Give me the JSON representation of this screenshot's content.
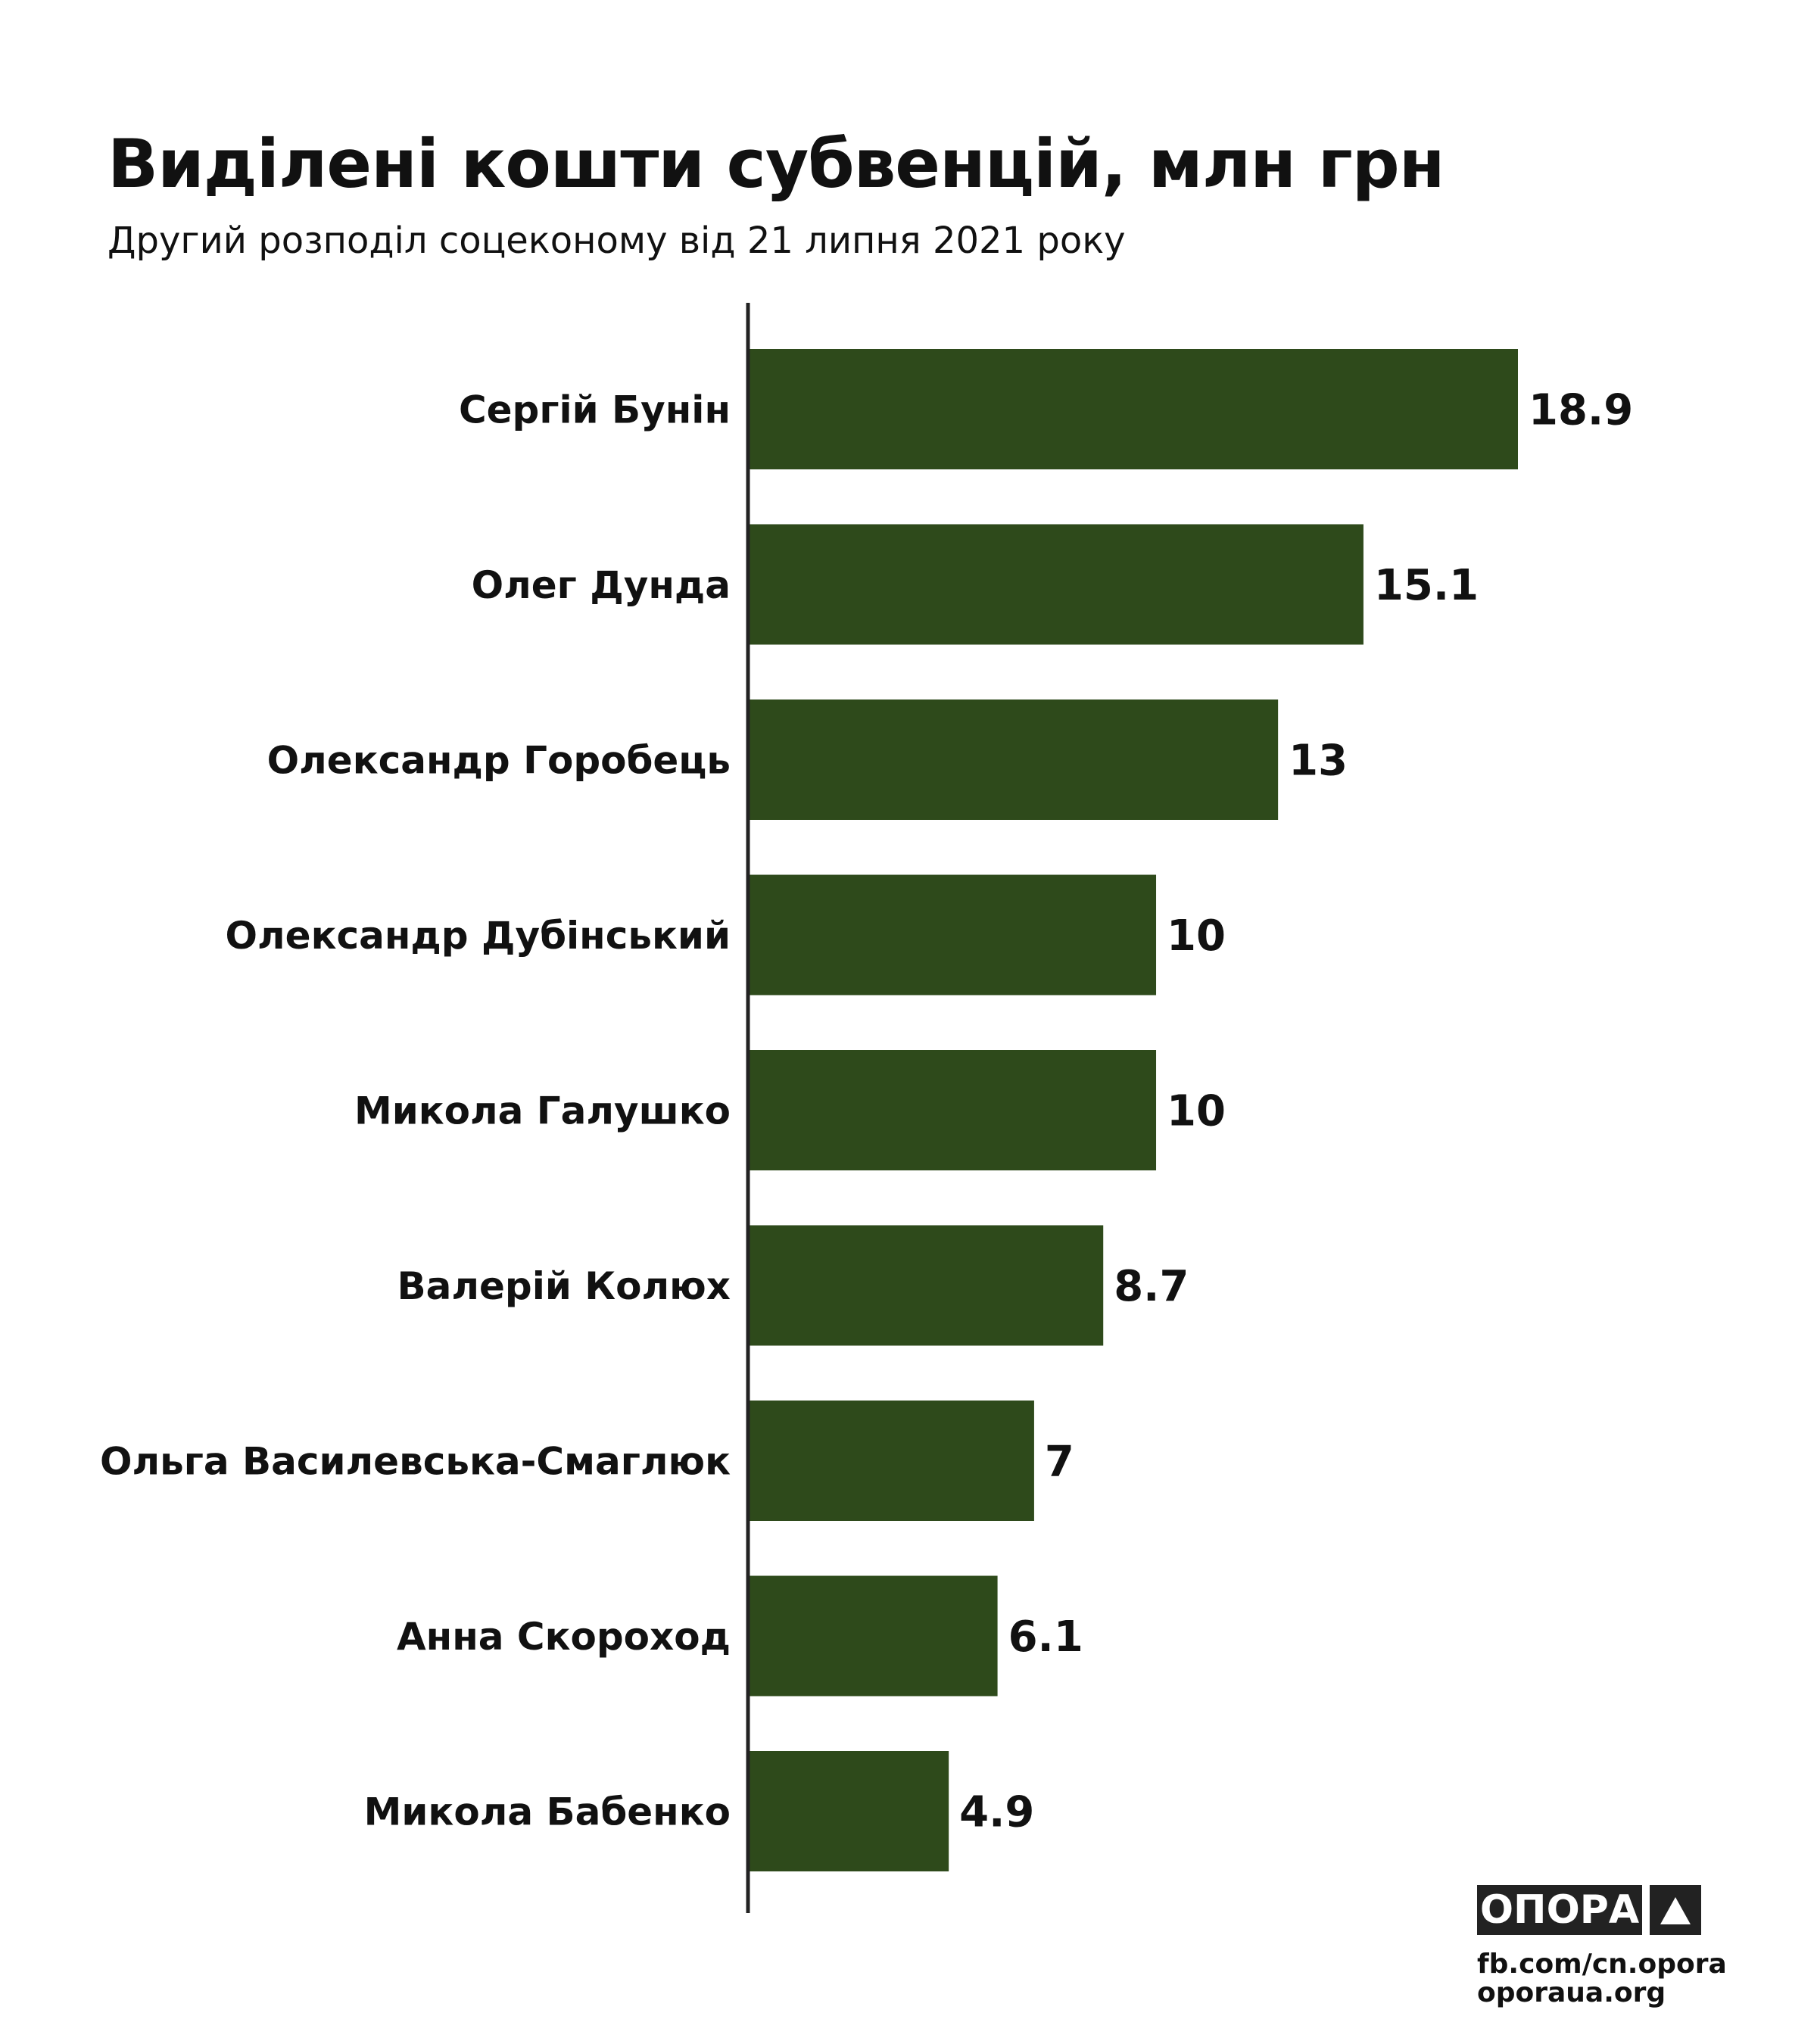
{
  "colors": {
    "bar": "#2e4a1b",
    "axis": "#222222",
    "text": "#111111"
  },
  "chart_data": {
    "type": "bar",
    "orientation": "horizontal",
    "title": "Виділені кошти субвенцій, млн грн",
    "subtitle": "Другий розподіл соцеконому від 21 липня 2021 року",
    "xlabel": "",
    "ylabel": "",
    "categories": [
      "Сергій Бунін",
      "Олег Дунда",
      "Олександр Горобець",
      "Олександр Дубінський",
      "Микола Галушко",
      "Валерій Колюх",
      "Ольга Василевська-Смаглюк",
      "Анна Скороход",
      "Микола Бабенко"
    ],
    "values": [
      18.9,
      15.1,
      13,
      10,
      10,
      8.7,
      7,
      6.1,
      4.9
    ],
    "value_labels": [
      "18.9",
      "15.1",
      "13",
      "10",
      "10",
      "8.7",
      "7",
      "6.1",
      "4.9"
    ],
    "xlim": [
      0,
      18.9
    ],
    "grid": false,
    "legend": "none"
  },
  "logo": {
    "name": "ОПОРА",
    "icon": "triangle-icon"
  },
  "footer": {
    "fb": "fb.com/cn.opora",
    "site": "oporaua.org"
  }
}
